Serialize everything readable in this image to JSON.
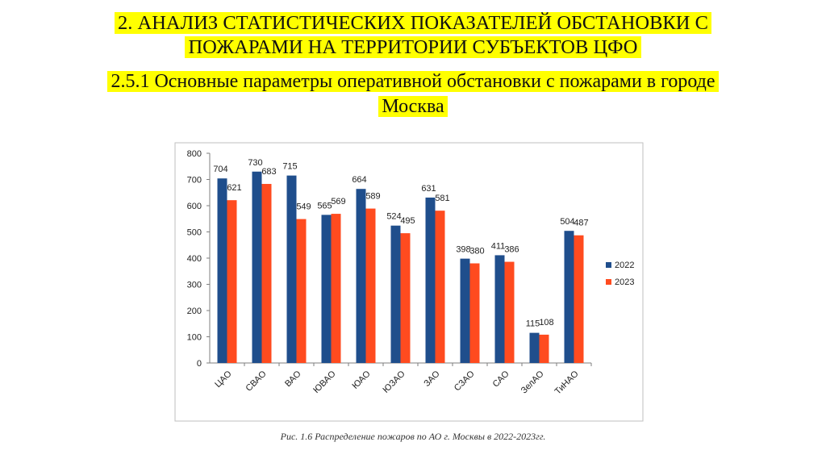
{
  "heading": {
    "line1": "2. АНАЛИЗ СТАТИСТИЧЕСКИХ ПОКАЗАТЕЛЕЙ ОБСТАНОВКИ С",
    "line2": "ПОЖАРАМИ НА ТЕРРИТОРИИ СУБЪЕКТОВ ЦФО",
    "sub1": "2.5.1 Основные параметры оперативной обстановки с пожарами в городе",
    "sub2": "Москва"
  },
  "caption": "Рис. 1.6 Распределение пожаров по АО г. Москвы в 2022-2023гг.",
  "colors": {
    "highlight": "#ffff00",
    "series_2022": "#1f4e8c",
    "series_2023": "#ff4b1f"
  },
  "chart_data": {
    "type": "bar",
    "title": "",
    "xlabel": "",
    "ylabel": "",
    "categories": [
      "ЦАО",
      "СВАО",
      "ВАО",
      "ЮВАО",
      "ЮАО",
      "ЮЗАО",
      "ЗАО",
      "СЗАО",
      "САО",
      "ЗелАО",
      "ТиНАО"
    ],
    "series": [
      {
        "name": "2022",
        "values": [
          704,
          730,
          715,
          565,
          664,
          524,
          631,
          398,
          411,
          115,
          504
        ]
      },
      {
        "name": "2023",
        "values": [
          621,
          683,
          549,
          569,
          589,
          495,
          581,
          380,
          386,
          108,
          487
        ]
      }
    ],
    "ylim": [
      0,
      800
    ],
    "yticks": [
      0,
      100,
      200,
      300,
      400,
      500,
      600,
      700,
      800
    ],
    "grid": false,
    "legend": "right"
  }
}
